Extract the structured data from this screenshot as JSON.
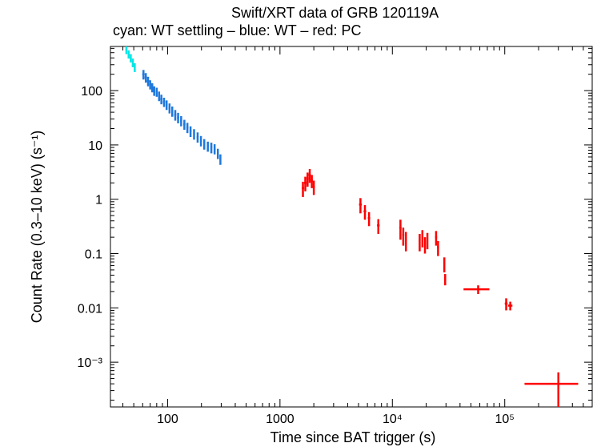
{
  "chart_data": {
    "type": "scatter",
    "title": "Swift/XRT data of GRB 120119A",
    "subtitle": "cyan: WT settling – blue: WT – red: PC",
    "xlabel": "Time since BAT trigger (s)",
    "ylabel": "Count Rate (0.3–10 keV) (s⁻¹)",
    "xscale": "log",
    "yscale": "log",
    "xlim": [
      31,
      600000
    ],
    "ylim": [
      0.00015,
      650
    ],
    "x_ticks": [
      {
        "value": 100,
        "label": "100"
      },
      {
        "value": 1000,
        "label": "1000"
      },
      {
        "value": 10000,
        "label": "10⁴"
      },
      {
        "value": 100000,
        "label": "10⁵"
      }
    ],
    "y_ticks": [
      {
        "value": 100,
        "label": "100"
      },
      {
        "value": 10,
        "label": "10"
      },
      {
        "value": 1,
        "label": "1"
      },
      {
        "value": 0.1,
        "label": "0.1"
      },
      {
        "value": 0.01,
        "label": "0.01"
      },
      {
        "value": 0.001,
        "label": "10⁻³"
      }
    ],
    "series": [
      {
        "name": "WT settling",
        "color": "#00e5e5",
        "points": [
          {
            "x": 43,
            "y": 560,
            "xerr": 0.8,
            "yerr": 90
          },
          {
            "x": 45,
            "y": 470,
            "xerr": 0.8,
            "yerr": 80
          },
          {
            "x": 47,
            "y": 400,
            "xerr": 0.8,
            "yerr": 70
          },
          {
            "x": 49,
            "y": 330,
            "xerr": 0.8,
            "yerr": 60
          },
          {
            "x": 51,
            "y": 270,
            "xerr": 0.8,
            "yerr": 50
          }
        ]
      },
      {
        "name": "WT",
        "color": "#1e78dc",
        "points": [
          {
            "x": 61,
            "y": 200,
            "xerr": 1.5,
            "yerr": 40
          },
          {
            "x": 64,
            "y": 175,
            "xerr": 1.5,
            "yerr": 35
          },
          {
            "x": 67,
            "y": 150,
            "xerr": 1.5,
            "yerr": 30
          },
          {
            "x": 70,
            "y": 130,
            "xerr": 1.5,
            "yerr": 25
          },
          {
            "x": 73,
            "y": 115,
            "xerr": 1.5,
            "yerr": 22
          },
          {
            "x": 76,
            "y": 100,
            "xerr": 1.5,
            "yerr": 20
          },
          {
            "x": 80,
            "y": 95,
            "xerr": 1.5,
            "yerr": 18
          },
          {
            "x": 84,
            "y": 80,
            "xerr": 1.5,
            "yerr": 16
          },
          {
            "x": 88,
            "y": 70,
            "xerr": 2,
            "yerr": 14
          },
          {
            "x": 93,
            "y": 62,
            "xerr": 2,
            "yerr": 12
          },
          {
            "x": 98,
            "y": 55,
            "xerr": 2,
            "yerr": 11
          },
          {
            "x": 104,
            "y": 48,
            "xerr": 2,
            "yerr": 10
          },
          {
            "x": 110,
            "y": 42,
            "xerr": 2,
            "yerr": 9
          },
          {
            "x": 117,
            "y": 36,
            "xerr": 2.5,
            "yerr": 8
          },
          {
            "x": 124,
            "y": 32,
            "xerr": 2.5,
            "yerr": 7
          },
          {
            "x": 132,
            "y": 28,
            "xerr": 2.5,
            "yerr": 6
          },
          {
            "x": 141,
            "y": 24,
            "xerr": 3,
            "yerr": 5
          },
          {
            "x": 150,
            "y": 21,
            "xerr": 3,
            "yerr": 4.5
          },
          {
            "x": 160,
            "y": 18,
            "xerr": 3,
            "yerr": 4
          },
          {
            "x": 172,
            "y": 16,
            "xerr": 3,
            "yerr": 3.5
          },
          {
            "x": 185,
            "y": 14,
            "xerr": 3.5,
            "yerr": 3
          },
          {
            "x": 198,
            "y": 12,
            "xerr": 3.5,
            "yerr": 2.6
          },
          {
            "x": 212,
            "y": 10.5,
            "xerr": 4,
            "yerr": 2.3
          },
          {
            "x": 228,
            "y": 9.5,
            "xerr": 4,
            "yerr": 2
          },
          {
            "x": 245,
            "y": 9,
            "xerr": 4.5,
            "yerr": 2
          },
          {
            "x": 262,
            "y": 8.5,
            "xerr": 5,
            "yerr": 1.8
          },
          {
            "x": 280,
            "y": 7,
            "xerr": 5,
            "yerr": 1.5
          },
          {
            "x": 295,
            "y": 5.5,
            "xerr": 5,
            "yerr": 1.2
          }
        ]
      },
      {
        "name": "PC",
        "color": "#ff0000",
        "points": [
          {
            "x": 1600,
            "y": 1.6,
            "xerr": 40,
            "yerr": 0.5
          },
          {
            "x": 1680,
            "y": 2.0,
            "xerr": 40,
            "yerr": 0.6
          },
          {
            "x": 1760,
            "y": 2.4,
            "xerr": 40,
            "yerr": 0.7
          },
          {
            "x": 1840,
            "y": 2.8,
            "xerr": 40,
            "yerr": 0.8
          },
          {
            "x": 1920,
            "y": 2.2,
            "xerr": 40,
            "yerr": 0.6
          },
          {
            "x": 2000,
            "y": 1.7,
            "xerr": 40,
            "yerr": 0.5
          },
          {
            "x": 5200,
            "y": 0.8,
            "xerr": 150,
            "yerr": 0.25
          },
          {
            "x": 5700,
            "y": 0.6,
            "xerr": 150,
            "yerr": 0.18
          },
          {
            "x": 6200,
            "y": 0.45,
            "xerr": 150,
            "yerr": 0.13
          },
          {
            "x": 7500,
            "y": 0.33,
            "xerr": 200,
            "yerr": 0.1
          },
          {
            "x": 11800,
            "y": 0.3,
            "xerr": 250,
            "yerr": 0.12
          },
          {
            "x": 12500,
            "y": 0.22,
            "xerr": 250,
            "yerr": 0.08
          },
          {
            "x": 13200,
            "y": 0.18,
            "xerr": 250,
            "yerr": 0.07
          },
          {
            "x": 17500,
            "y": 0.17,
            "xerr": 300,
            "yerr": 0.06
          },
          {
            "x": 18500,
            "y": 0.2,
            "xerr": 300,
            "yerr": 0.07
          },
          {
            "x": 19500,
            "y": 0.15,
            "xerr": 300,
            "yerr": 0.05
          },
          {
            "x": 20500,
            "y": 0.18,
            "xerr": 300,
            "yerr": 0.06
          },
          {
            "x": 24500,
            "y": 0.2,
            "xerr": 500,
            "yerr": 0.06
          },
          {
            "x": 25500,
            "y": 0.13,
            "xerr": 500,
            "yerr": 0.04
          },
          {
            "x": 29000,
            "y": 0.065,
            "xerr": 500,
            "yerr": 0.02
          },
          {
            "x": 29500,
            "y": 0.034,
            "xerr": 500,
            "yerr": 0.008
          },
          {
            "x": 58000,
            "y": 0.022,
            "xerr": 15000,
            "yerr": 0.004
          },
          {
            "x": 103000,
            "y": 0.012,
            "xerr": 3000,
            "yerr": 0.003
          },
          {
            "x": 112000,
            "y": 0.011,
            "xerr": 5000,
            "yerr": 0.002
          },
          {
            "x": 300000,
            "y": 0.0004,
            "xerr": 150000,
            "yerr": 0.00025
          }
        ]
      }
    ]
  }
}
